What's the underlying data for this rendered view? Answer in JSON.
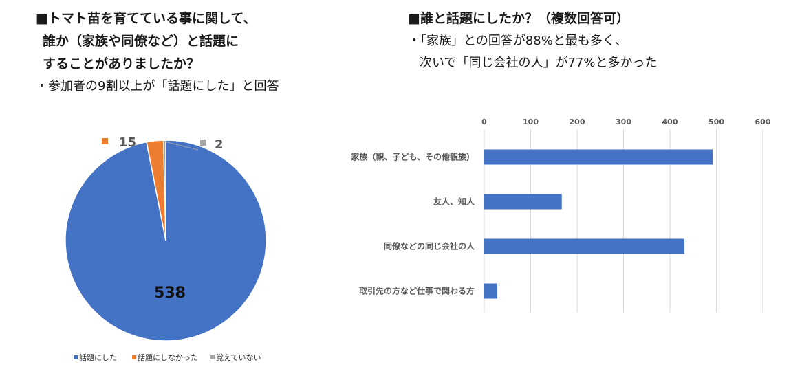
{
  "left": {
    "heading": [
      "■トマト苗を育てている事に関して、",
      "誰か（家族や同僚など）と話題に",
      "することがありましたか？"
    ],
    "note": "・参加者の9割以上が「話題にした」と回答"
  },
  "right": {
    "heading": "■誰と話題にしたか？（複数回答可）",
    "notes": [
      "・「家族」との回答が88%と最も多く、",
      "次いで「同じ会社の人」が77%と多かった"
    ]
  },
  "colors": {
    "blue": "#4472C4",
    "orange": "#ED7D31",
    "gray": "#A5A5A5",
    "grid": "#D9D9D9",
    "label": "#595959"
  },
  "chart_data": [
    {
      "type": "pie",
      "title": "",
      "categories": [
        "話題にした",
        "話題にしなかった",
        "覚えていない"
      ],
      "values": [
        538,
        15,
        2
      ],
      "data_labels": [
        "538",
        "15",
        "2"
      ],
      "legend": "bottom"
    },
    {
      "type": "bar",
      "orientation": "horizontal",
      "title": "",
      "categories": [
        "家族（親、子ども、その他親族）",
        "友人、知人",
        "同僚などの同じ会社の人",
        "取引先の方など仕事で関わる方"
      ],
      "values": [
        492,
        167,
        431,
        28
      ],
      "xlim": [
        0,
        600
      ],
      "ticks": [
        0,
        100,
        200,
        300,
        400,
        500,
        600
      ],
      "tick_labels": [
        "0",
        "100",
        "200",
        "300",
        "400",
        "500",
        "600"
      ],
      "axis_position": "top",
      "grid": true
    }
  ]
}
